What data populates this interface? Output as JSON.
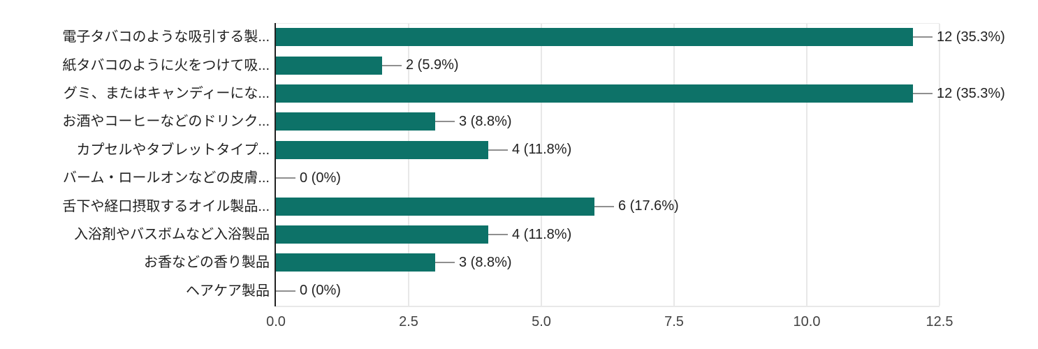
{
  "chart_data": {
    "type": "bar",
    "orientation": "horizontal",
    "title": "",
    "categories": [
      "電子タバコのような吸引する製...",
      "紙タバコのように火をつけて吸...",
      "グミ、またはキャンディーにな...",
      "お酒やコーヒーなどのドリンク...",
      "カプセルやタブレットタイプ...",
      "バーム・ロールオンなどの皮膚...",
      "舌下や経口摂取するオイル製品...",
      "入浴剤やバスボムなど入浴製品",
      "お香などの香り製品",
      "ヘアケア製品"
    ],
    "values": [
      12,
      2,
      12,
      3,
      4,
      0,
      6,
      4,
      3,
      0
    ],
    "value_labels": [
      "12 (35.3%)",
      "2 (5.9%)",
      "12 (35.3%)",
      "3 (8.8%)",
      "4 (11.8%)",
      "0 (0%)",
      "6 (17.6%)",
      "4 (11.8%)",
      "3 (8.8%)",
      "0 (0%)"
    ],
    "x_tick_labels": [
      "0.0",
      "2.5",
      "5.0",
      "7.5",
      "10.0",
      "12.5"
    ],
    "xlim": [
      0,
      12.5
    ],
    "grid": true,
    "legend": "none",
    "colors": {
      "bar": "#0d7268",
      "label_text": "#212121",
      "tick_text": "#424242",
      "axis_line": "#212121",
      "gridline": "#e8e8e8",
      "connector": "#8f8f8f"
    }
  }
}
